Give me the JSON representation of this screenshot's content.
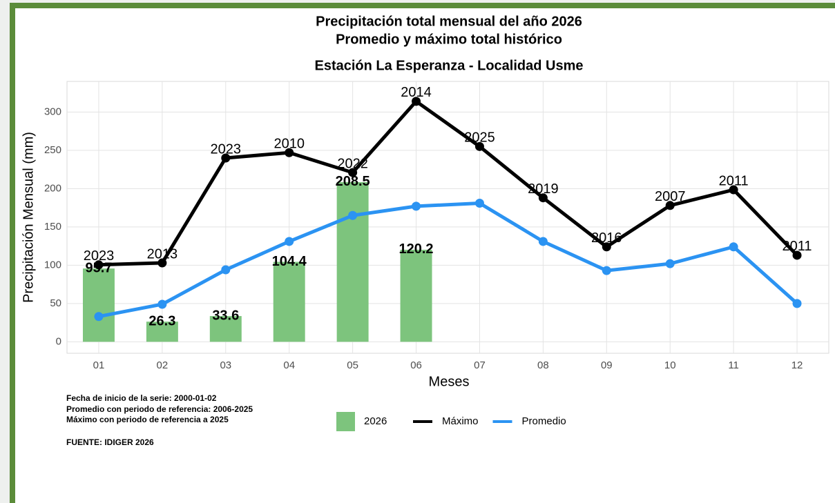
{
  "chart_data": {
    "type": "bar-line",
    "title": "Precipitación total mensual del año 2026",
    "subtitle": "Promedio y máximo total histórico",
    "station": "Estación La Esperanza - Localidad Usme",
    "xlabel": "Meses",
    "ylabel": "Precipitación Mensual (mm)",
    "categories": [
      "01",
      "02",
      "03",
      "04",
      "05",
      "06",
      "07",
      "08",
      "09",
      "10",
      "11",
      "12"
    ],
    "ylim": [
      -15,
      340
    ],
    "yticks": [
      0,
      50,
      100,
      150,
      200,
      250,
      300
    ],
    "grid": true,
    "series": [
      {
        "name": "2026",
        "kind": "bar",
        "color": "#7dc47d",
        "values": [
          95.7,
          26.3,
          33.6,
          104.4,
          208.5,
          120.2,
          null,
          null,
          null,
          null,
          null,
          null
        ]
      },
      {
        "name": "Máximo",
        "kind": "line",
        "color": "#000000",
        "values": [
          100.5,
          103,
          240,
          247,
          221,
          314,
          255,
          188,
          124,
          178,
          198.5,
          113
        ],
        "point_labels": [
          "2023",
          "2013",
          "2023",
          "2010",
          "2022",
          "2014",
          "2025",
          "2019",
          "2016",
          "2007",
          "2011",
          "2011"
        ]
      },
      {
        "name": "Promedio",
        "kind": "line",
        "color": "#2b93f2",
        "values": [
          33,
          49,
          94,
          131,
          165,
          177,
          181,
          131,
          93,
          102,
          124,
          50
        ]
      }
    ],
    "notes": [
      "Fecha de inicio de la serie: 2000-01-02",
      "Promedio con periodo de referencia: 2006-2025",
      "Máximo con periodo de referencia a 2025"
    ],
    "source": "FUENTE: IDIGER 2026"
  }
}
